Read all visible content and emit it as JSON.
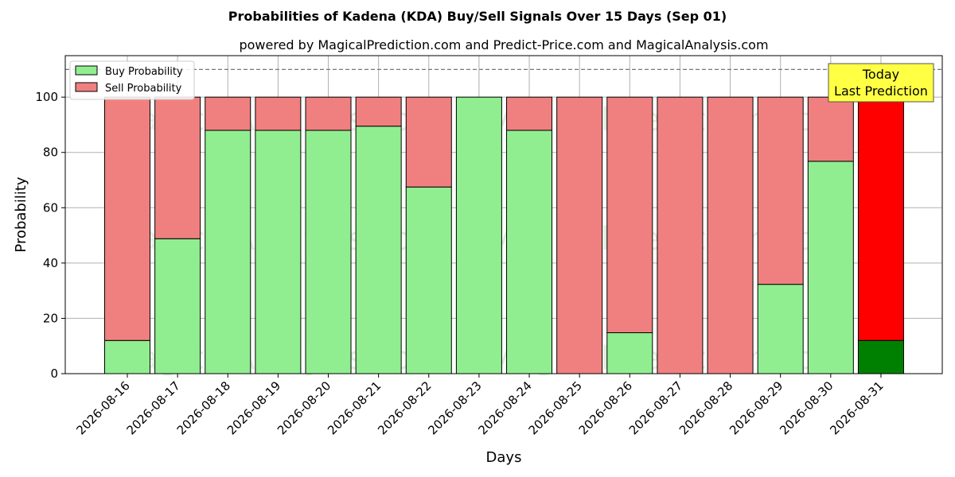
{
  "chart_data": {
    "type": "bar",
    "stacked": true,
    "title": "Probabilities of Kadena (KDA) Buy/Sell Signals Over 15 Days (Sep 01)",
    "subtitle": "powered by MagicalPrediction.com and Predict-Price.com and MagicalAnalysis.com",
    "xlabel": "Days",
    "ylabel": "Probability",
    "ylim": [
      0,
      115
    ],
    "yticks": [
      0,
      20,
      40,
      60,
      80,
      100
    ],
    "grid": true,
    "legend_position": "top-left",
    "reference_line": 110,
    "categories": [
      "2026-08-16",
      "2026-08-17",
      "2026-08-18",
      "2026-08-19",
      "2026-08-20",
      "2026-08-21",
      "2026-08-22",
      "2026-08-23",
      "2026-08-24",
      "2026-08-25",
      "2026-08-26",
      "2026-08-27",
      "2026-08-28",
      "2026-08-29",
      "2026-08-30",
      "2026-08-31"
    ],
    "series": [
      {
        "name": "Buy Probability",
        "color": "#90ee90",
        "values": [
          12,
          48.8,
          88,
          88,
          88,
          89.5,
          67.5,
          100,
          88,
          0,
          14.8,
          0,
          0,
          32.3,
          76.8,
          12
        ]
      },
      {
        "name": "Sell Probability",
        "color": "#f08080",
        "values": [
          88,
          51.2,
          12,
          12,
          12,
          10.5,
          32.5,
          0,
          12,
          100,
          85.2,
          100,
          100,
          67.7,
          23.2,
          88
        ]
      }
    ],
    "highlight": {
      "index": 15,
      "buy_color": "#008000",
      "sell_color": "#ff0000",
      "annotation": [
        "Today",
        "Last Prediction"
      ],
      "annotation_bg": "#ffff44"
    },
    "watermarks": [
      "MagicalAnalysis.com",
      "MagicalPrediction.com"
    ]
  }
}
